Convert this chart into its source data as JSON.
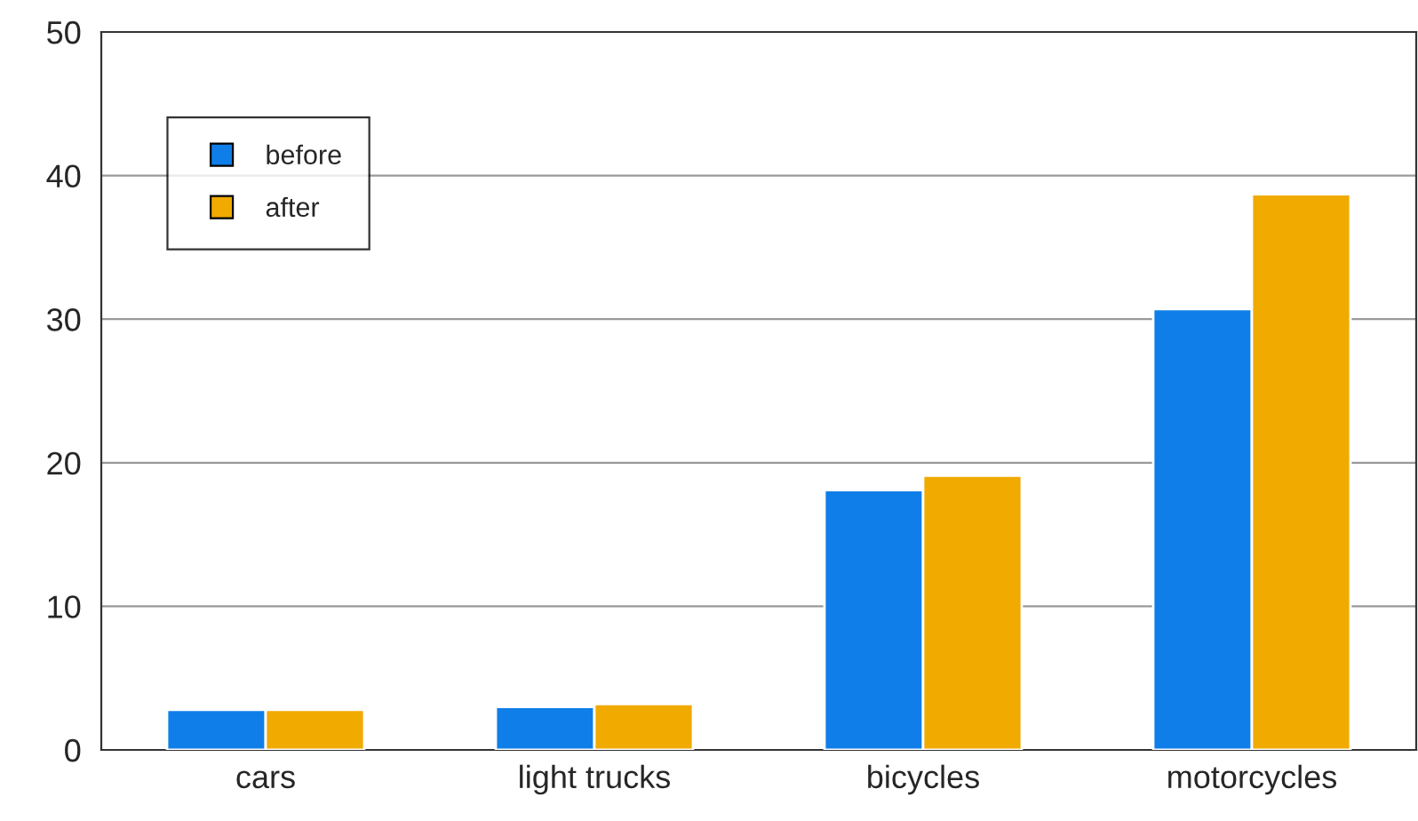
{
  "chart_data": {
    "type": "bar",
    "categories": [
      "cars",
      "light trucks",
      "bicycles",
      "motorcycles"
    ],
    "series": [
      {
        "name": "before",
        "color": "#0f7ee8",
        "values": [
          2.8,
          3.0,
          18.1,
          30.7
        ]
      },
      {
        "name": "after",
        "color": "#f0aa00",
        "values": [
          2.8,
          3.2,
          19.1,
          38.7
        ]
      }
    ],
    "ylim": [
      0,
      50
    ],
    "yticks": [
      0,
      10,
      20,
      30,
      40,
      50
    ],
    "grid": "y",
    "legend": "top left",
    "marker": "square"
  }
}
